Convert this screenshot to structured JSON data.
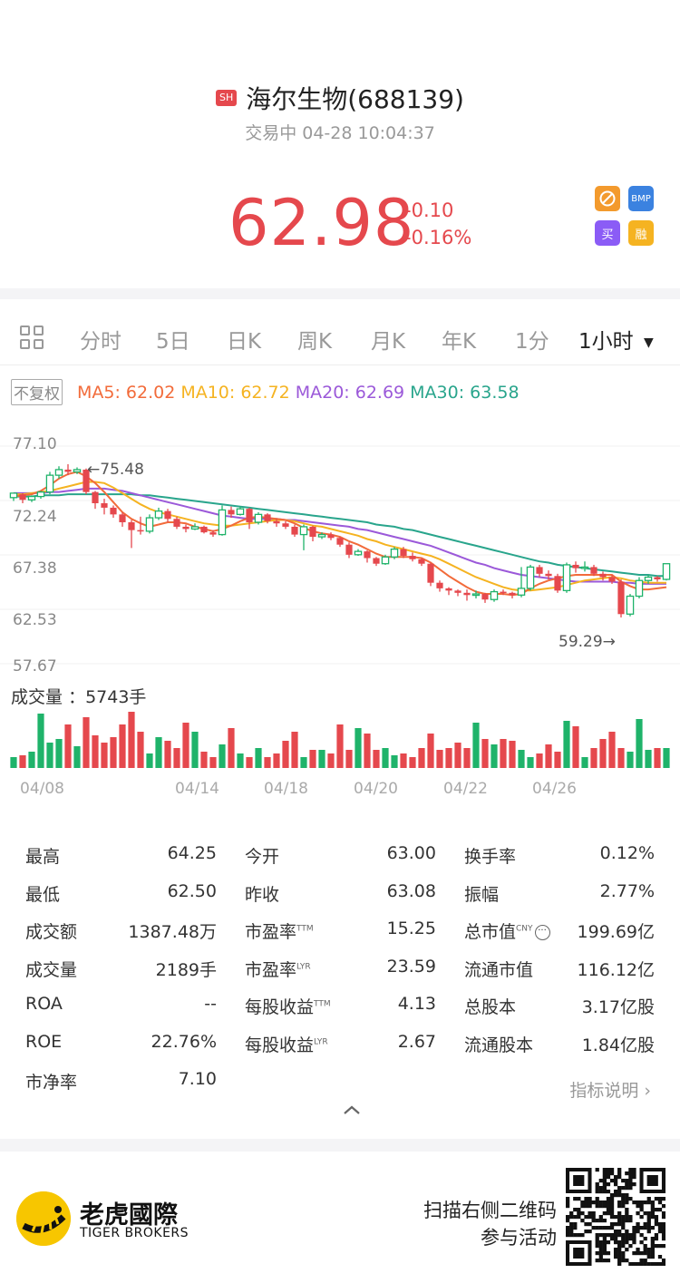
{
  "header": {
    "exchange_badge": "SH",
    "stock_name": "海尔生物(688139)",
    "status": "交易中 04-28 10:04:37",
    "price": "62.98",
    "change_abs": "-0.10",
    "change_pct": "-0.16%",
    "badges": [
      "BMP",
      "买",
      "融"
    ]
  },
  "tabs": [
    {
      "label": "分时",
      "active": false
    },
    {
      "label": "5日",
      "active": false
    },
    {
      "label": "日K",
      "active": false
    },
    {
      "label": "周K",
      "active": false
    },
    {
      "label": "月K",
      "active": false
    },
    {
      "label": "年K",
      "active": false
    },
    {
      "label": "1分",
      "active": false
    },
    {
      "label": "1小时",
      "active": true
    }
  ],
  "ma_bar": {
    "adjust_label": "不复权",
    "ma5": "MA5: 62.02",
    "ma10": "MA10: 62.72",
    "ma20": "MA20: 62.69",
    "ma30": "MA30: 63.58"
  },
  "colors": {
    "up": "#e5484d",
    "down": "#1fb36a",
    "ma5": "#f26b3a",
    "ma10": "#f5b321",
    "ma20": "#9b59d9",
    "ma30": "#29a58c"
  },
  "chart_data": {
    "type": "candlestick",
    "y_ticks": [
      "77.10",
      "72.24",
      "67.38",
      "62.53",
      "57.67"
    ],
    "ylim": [
      57.67,
      77.1
    ],
    "x_ticks": [
      "04/08",
      "04/14",
      "04/18",
      "04/20",
      "04/22",
      "04/26"
    ],
    "high_marker": "75.48",
    "low_marker": "59.29",
    "volume_label": "成交量",
    "volume_value": "：5743手",
    "candles": [
      [
        72.5,
        72.9,
        72.2,
        72.8
      ],
      [
        72.8,
        72.3,
        72.0,
        72.9
      ],
      [
        72.3,
        72.6,
        72.1,
        72.7
      ],
      [
        72.6,
        73.0,
        72.4,
        73.1
      ],
      [
        73.0,
        74.5,
        72.8,
        74.8
      ],
      [
        74.5,
        75.0,
        74.2,
        75.3
      ],
      [
        75.0,
        74.8,
        74.5,
        75.48
      ],
      [
        74.8,
        75.0,
        74.6,
        75.2
      ],
      [
        75.0,
        73.0,
        72.8,
        75.1
      ],
      [
        73.0,
        72.0,
        71.5,
        73.1
      ],
      [
        72.0,
        71.6,
        71.0,
        72.4
      ],
      [
        71.6,
        71.0,
        70.7,
        71.8
      ],
      [
        71.0,
        70.3,
        69.9,
        71.2
      ],
      [
        70.3,
        69.6,
        68.0,
        70.5
      ],
      [
        69.6,
        69.5,
        69.2,
        70.8
      ],
      [
        69.5,
        70.7,
        69.3,
        71.0
      ],
      [
        70.7,
        71.3,
        70.5,
        71.6
      ],
      [
        71.3,
        70.6,
        70.3,
        71.5
      ],
      [
        70.6,
        69.9,
        69.7,
        70.8
      ],
      [
        69.9,
        69.7,
        69.4,
        70.1
      ],
      [
        69.7,
        69.9,
        69.6,
        70.2
      ],
      [
        69.9,
        69.4,
        69.3,
        70.0
      ],
      [
        69.4,
        69.2,
        69.0,
        69.6
      ],
      [
        69.2,
        71.4,
        69.1,
        71.8
      ],
      [
        71.4,
        71.0,
        70.7,
        71.7
      ],
      [
        71.0,
        71.5,
        70.9,
        71.7
      ],
      [
        71.5,
        70.3,
        69.7,
        71.6
      ],
      [
        70.3,
        71.0,
        70.1,
        71.2
      ],
      [
        71.0,
        70.4,
        70.2,
        71.1
      ],
      [
        70.4,
        70.2,
        69.9,
        70.6
      ],
      [
        70.2,
        69.9,
        69.7,
        70.4
      ],
      [
        69.9,
        69.2,
        69.0,
        70.1
      ],
      [
        69.2,
        69.9,
        67.8,
        70.1
      ],
      [
        69.9,
        69.0,
        68.6,
        70.0
      ],
      [
        69.0,
        69.2,
        68.8,
        69.4
      ],
      [
        69.2,
        68.9,
        68.7,
        69.4
      ],
      [
        68.9,
        68.3,
        68.1,
        69.0
      ],
      [
        68.3,
        67.4,
        67.1,
        68.5
      ],
      [
        67.4,
        67.7,
        67.3,
        67.9
      ],
      [
        67.7,
        67.1,
        66.7,
        67.8
      ],
      [
        67.1,
        66.6,
        66.4,
        67.2
      ],
      [
        66.6,
        67.2,
        66.5,
        67.4
      ],
      [
        67.2,
        67.9,
        67.0,
        68.1
      ],
      [
        67.9,
        67.3,
        67.1,
        68.1
      ],
      [
        67.3,
        67.0,
        66.8,
        67.6
      ],
      [
        67.0,
        66.6,
        66.4,
        67.1
      ],
      [
        66.6,
        64.9,
        64.6,
        66.7
      ],
      [
        64.9,
        64.4,
        64.1,
        65.1
      ],
      [
        64.4,
        64.2,
        63.8,
        64.5
      ],
      [
        64.2,
        64.0,
        63.7,
        64.3
      ],
      [
        64.0,
        63.8,
        63.3,
        64.3
      ],
      [
        63.8,
        63.9,
        63.5,
        64.2
      ],
      [
        63.9,
        63.4,
        63.1,
        64.0
      ],
      [
        63.4,
        64.1,
        63.2,
        64.3
      ],
      [
        64.1,
        64.0,
        63.8,
        64.3
      ],
      [
        64.0,
        63.8,
        63.5,
        64.1
      ],
      [
        63.8,
        64.4,
        63.6,
        66.3
      ],
      [
        64.4,
        66.3,
        64.2,
        66.5
      ],
      [
        66.3,
        65.7,
        65.4,
        66.5
      ],
      [
        65.7,
        65.5,
        65.2,
        66.0
      ],
      [
        65.5,
        64.2,
        64.0,
        65.7
      ],
      [
        64.2,
        66.5,
        64.0,
        66.7
      ],
      [
        66.5,
        66.2,
        65.8,
        66.8
      ],
      [
        66.2,
        66.3,
        65.9,
        66.8
      ],
      [
        66.3,
        65.7,
        65.5,
        66.5
      ],
      [
        65.7,
        65.4,
        65.1,
        65.9
      ],
      [
        65.4,
        65.0,
        64.8,
        65.6
      ],
      [
        65.0,
        62.1,
        61.8,
        65.2
      ],
      [
        62.1,
        63.7,
        61.9,
        63.9
      ],
      [
        63.7,
        65.1,
        63.5,
        65.4
      ],
      [
        65.1,
        65.4,
        64.8,
        65.6
      ],
      [
        65.4,
        65.2,
        65.0,
        65.5
      ],
      [
        65.2,
        66.6,
        65.1,
        66.6
      ]
    ],
    "ma_series": {
      "ma5": [
        72.6,
        72.7,
        72.8,
        73.1,
        73.6,
        74.2,
        74.6,
        74.8,
        74.4,
        73.8,
        73.0,
        72.1,
        71.2,
        70.6,
        70.2,
        69.9,
        70.1,
        70.3,
        70.3,
        70.2,
        69.9,
        69.7,
        69.5,
        69.7,
        70.0,
        70.4,
        70.7,
        70.8,
        70.7,
        70.6,
        70.5,
        70.2,
        69.8,
        69.5,
        69.3,
        69.2,
        69.0,
        68.6,
        68.3,
        67.9,
        67.5,
        67.2,
        67.2,
        67.2,
        67.2,
        67.1,
        66.7,
        66.1,
        65.5,
        65.0,
        64.5,
        64.1,
        63.9,
        63.9,
        63.9,
        63.8,
        63.9,
        64.4,
        64.8,
        65.1,
        65.3,
        65.5,
        65.6,
        65.6,
        65.6,
        65.6,
        65.6,
        65.0,
        64.6,
        64.3,
        64.3,
        64.4,
        64.5
      ],
      "ma10": [
        72.8,
        72.8,
        72.9,
        73.0,
        73.1,
        73.3,
        73.5,
        73.7,
        73.9,
        73.9,
        73.8,
        73.4,
        72.9,
        72.4,
        71.9,
        71.5,
        71.2,
        71.0,
        70.8,
        70.6,
        70.4,
        70.2,
        70.1,
        70.0,
        70.0,
        70.1,
        70.2,
        70.3,
        70.4,
        70.5,
        70.5,
        70.4,
        70.2,
        70.0,
        69.9,
        69.7,
        69.5,
        69.3,
        69.1,
        68.8,
        68.6,
        68.3,
        68.1,
        67.9,
        67.7,
        67.5,
        67.3,
        67.0,
        66.6,
        66.2,
        65.8,
        65.4,
        65.1,
        64.8,
        64.5,
        64.3,
        64.2,
        64.2,
        64.3,
        64.4,
        64.5,
        64.7,
        64.9,
        65.1,
        65.2,
        65.3,
        65.4,
        65.3,
        65.1,
        65.0,
        64.9,
        64.9,
        64.9
      ],
      "ma20": [
        72.9,
        72.9,
        72.9,
        72.9,
        73.0,
        73.0,
        73.1,
        73.2,
        73.3,
        73.3,
        73.3,
        73.2,
        73.1,
        72.9,
        72.7,
        72.5,
        72.3,
        72.1,
        71.9,
        71.7,
        71.5,
        71.3,
        71.1,
        70.9,
        70.8,
        70.7,
        70.6,
        70.6,
        70.6,
        70.6,
        70.5,
        70.5,
        70.4,
        70.3,
        70.2,
        70.1,
        70.0,
        69.9,
        69.7,
        69.6,
        69.4,
        69.2,
        69.0,
        68.8,
        68.6,
        68.4,
        68.2,
        67.9,
        67.6,
        67.3,
        67.0,
        66.7,
        66.5,
        66.2,
        66.0,
        65.8,
        65.6,
        65.5,
        65.4,
        65.3,
        65.2,
        65.1,
        65.0,
        65.0,
        65.0,
        65.0,
        65.0,
        64.9,
        64.9,
        64.8,
        64.8,
        64.8,
        64.8
      ],
      "ma30": [
        72.6,
        72.6,
        72.6,
        72.7,
        72.7,
        72.7,
        72.8,
        72.8,
        72.8,
        72.8,
        72.8,
        72.8,
        72.8,
        72.8,
        72.7,
        72.7,
        72.6,
        72.5,
        72.4,
        72.3,
        72.2,
        72.1,
        72.0,
        71.9,
        71.8,
        71.7,
        71.6,
        71.5,
        71.4,
        71.3,
        71.2,
        71.1,
        71.0,
        70.9,
        70.8,
        70.7,
        70.6,
        70.5,
        70.4,
        70.3,
        70.1,
        70.0,
        69.9,
        69.7,
        69.6,
        69.4,
        69.2,
        69.0,
        68.8,
        68.6,
        68.4,
        68.2,
        68.0,
        67.8,
        67.6,
        67.4,
        67.2,
        67.0,
        66.8,
        66.7,
        66.5,
        66.4,
        66.3,
        66.2,
        66.1,
        66.0,
        65.9,
        65.8,
        65.7,
        65.6,
        65.6,
        65.5,
        65.5
      ]
    },
    "volumes": [
      12,
      14,
      18,
      60,
      28,
      32,
      48,
      24,
      56,
      36,
      28,
      34,
      48,
      62,
      40,
      16,
      34,
      30,
      22,
      50,
      40,
      18,
      12,
      26,
      44,
      16,
      12,
      22,
      12,
      16,
      30,
      40,
      12,
      20,
      20,
      16,
      48,
      20,
      44,
      38,
      20,
      22,
      14,
      16,
      12,
      22,
      38,
      20,
      22,
      28,
      22,
      50,
      32,
      26,
      32,
      30,
      20,
      12,
      16,
      26,
      18,
      52,
      46,
      12,
      22,
      32,
      40,
      22,
      18,
      54,
      20,
      22,
      22
    ]
  },
  "stats": [
    [
      {
        "label": "最高",
        "value": "64.25"
      },
      {
        "label": "最低",
        "value": "62.50"
      },
      {
        "label": "成交额",
        "value": "1387.48万"
      },
      {
        "label": "成交量",
        "value": "2189手"
      },
      {
        "label": "ROA",
        "value": "--"
      },
      {
        "label": "ROE",
        "value": "22.76%"
      },
      {
        "label": "市净率",
        "value": "7.10"
      }
    ],
    [
      {
        "label": "今开",
        "value": "63.00",
        "sup": ""
      },
      {
        "label": "昨收",
        "value": "63.08",
        "sup": ""
      },
      {
        "label": "市盈率",
        "value": "15.25",
        "sup": "TTM"
      },
      {
        "label": "市盈率",
        "value": "23.59",
        "sup": "LYR"
      },
      {
        "label": "每股收益",
        "value": "4.13",
        "sup": "TTM"
      },
      {
        "label": "每股收益",
        "value": "2.67",
        "sup": "LYR"
      }
    ],
    [
      {
        "label": "换手率",
        "value": "0.12%",
        "sup": ""
      },
      {
        "label": "振幅",
        "value": "2.77%",
        "sup": ""
      },
      {
        "label": "总市值",
        "value": "199.69亿",
        "sup": "CNY"
      },
      {
        "label": "流通市值",
        "value": "116.12亿",
        "sup": ""
      },
      {
        "label": "总股本",
        "value": "3.17亿股",
        "sup": ""
      },
      {
        "label": "流通股本",
        "value": "1.84亿股",
        "sup": ""
      }
    ]
  ],
  "indicator_link": "指标说明",
  "footer": {
    "logo_cn": "老虎國際",
    "logo_en": "TIGER BROKERS",
    "scan_line1": "扫描右侧二维码",
    "scan_line2": "参与活动"
  }
}
